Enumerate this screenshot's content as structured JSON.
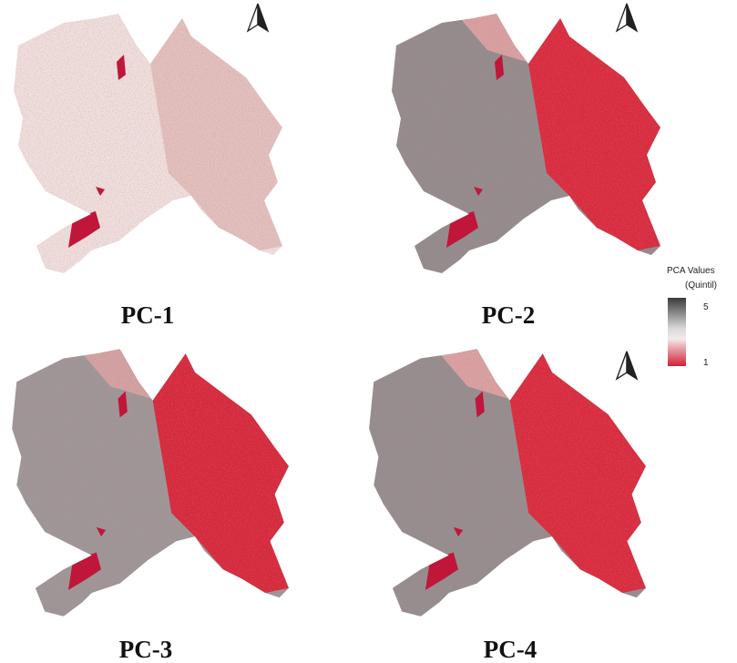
{
  "panels": [
    {
      "label": "PC-1"
    },
    {
      "label": "PC-2"
    },
    {
      "label": "PC-3"
    },
    {
      "label": "PC-4"
    }
  ],
  "legend": {
    "title": "PCA Values",
    "subtitle": "(Quintil)",
    "max": 5,
    "min": 1
  }
}
